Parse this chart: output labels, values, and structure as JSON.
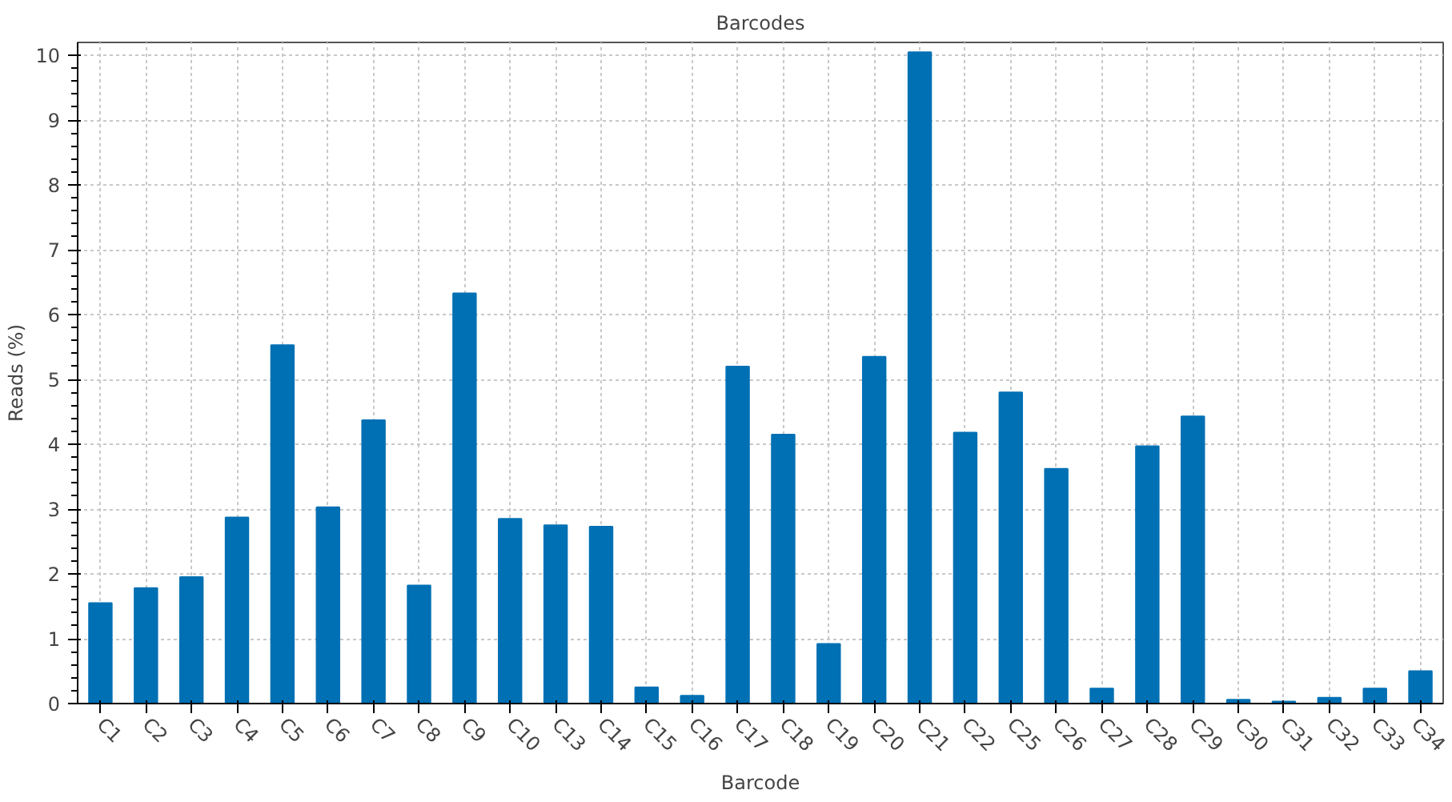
{
  "chart_data": {
    "type": "bar",
    "title": "Barcodes",
    "xlabel": "Barcode",
    "ylabel": "Reads (%)",
    "categories": [
      "C1",
      "C2",
      "C3",
      "C4",
      "C5",
      "C6",
      "C7",
      "C8",
      "C9",
      "C10",
      "C13",
      "C14",
      "C15",
      "C16",
      "C17",
      "C18",
      "C19",
      "C20",
      "C21",
      "C22",
      "C25",
      "C26",
      "C27",
      "C28",
      "C29",
      "C30",
      "C31",
      "C32",
      "C33",
      "C34"
    ],
    "values": [
      1.55,
      1.78,
      1.95,
      2.87,
      5.53,
      3.03,
      4.37,
      1.82,
      6.33,
      2.85,
      2.75,
      2.73,
      0.25,
      0.12,
      5.2,
      4.15,
      0.92,
      5.35,
      10.05,
      4.18,
      4.8,
      3.62,
      0.23,
      3.97,
      4.43,
      0.06,
      0.03,
      0.09,
      0.23,
      0.5
    ],
    "color": "#0070b4",
    "ylim": [
      0,
      10.2
    ],
    "yticks": [
      0,
      1,
      2,
      3,
      4,
      5,
      6,
      7,
      8,
      9,
      10
    ],
    "grid": true
  }
}
